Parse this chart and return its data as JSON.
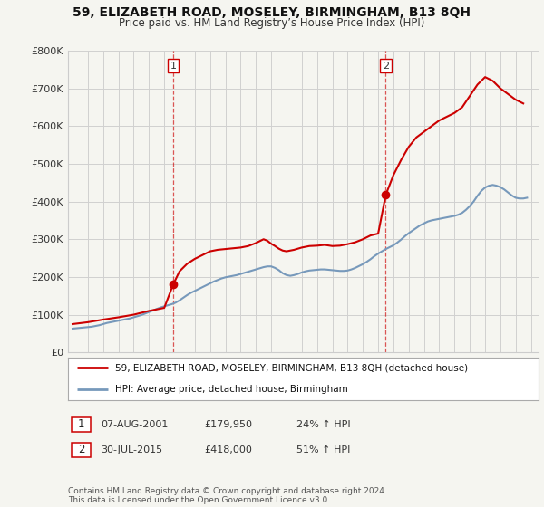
{
  "title": "59, ELIZABETH ROAD, MOSELEY, BIRMINGHAM, B13 8QH",
  "subtitle": "Price paid vs. HM Land Registry’s House Price Index (HPI)",
  "background_color": "#f5f5f0",
  "plot_bg_color": "#f5f5f0",
  "grid_color": "#d0d0d0",
  "legend_line1": "59, ELIZABETH ROAD, MOSELEY, BIRMINGHAM, B13 8QH (detached house)",
  "legend_line2": "HPI: Average price, detached house, Birmingham",
  "annotation1": "07-AUG-2001",
  "annotation1_price": "£179,950",
  "annotation1_pct": "24% ↑ HPI",
  "annotation2": "30-JUL-2015",
  "annotation2_price": "£418,000",
  "annotation2_pct": "51% ↑ HPI",
  "footer": "Contains HM Land Registry data © Crown copyright and database right 2024.\nThis data is licensed under the Open Government Licence v3.0.",
  "ylim": [
    0,
    800000
  ],
  "line_color_property": "#cc0000",
  "line_color_hpi": "#7799bb",
  "sale_marker_color": "#cc0000",
  "vline_color": "#cc0000",
  "sale1_year": 2001,
  "sale1_month": 8,
  "sale1_price": 179950,
  "sale2_year": 2015,
  "sale2_month": 7,
  "sale2_price": 418000,
  "hpi_x": [
    1995.0,
    1995.25,
    1995.5,
    1995.75,
    1996.0,
    1996.25,
    1996.5,
    1996.75,
    1997.0,
    1997.25,
    1997.5,
    1997.75,
    1998.0,
    1998.25,
    1998.5,
    1998.75,
    1999.0,
    1999.25,
    1999.5,
    1999.75,
    2000.0,
    2000.25,
    2000.5,
    2000.75,
    2001.0,
    2001.25,
    2001.5,
    2001.75,
    2002.0,
    2002.25,
    2002.5,
    2002.75,
    2003.0,
    2003.25,
    2003.5,
    2003.75,
    2004.0,
    2004.25,
    2004.5,
    2004.75,
    2005.0,
    2005.25,
    2005.5,
    2005.75,
    2006.0,
    2006.25,
    2006.5,
    2006.75,
    2007.0,
    2007.25,
    2007.5,
    2007.75,
    2008.0,
    2008.25,
    2008.5,
    2008.75,
    2009.0,
    2009.25,
    2009.5,
    2009.75,
    2010.0,
    2010.25,
    2010.5,
    2010.75,
    2011.0,
    2011.25,
    2011.5,
    2011.75,
    2012.0,
    2012.25,
    2012.5,
    2012.75,
    2013.0,
    2013.25,
    2013.5,
    2013.75,
    2014.0,
    2014.25,
    2014.5,
    2014.75,
    2015.0,
    2015.25,
    2015.5,
    2015.75,
    2016.0,
    2016.25,
    2016.5,
    2016.75,
    2017.0,
    2017.25,
    2017.5,
    2017.75,
    2018.0,
    2018.25,
    2018.5,
    2018.75,
    2019.0,
    2019.25,
    2019.5,
    2019.75,
    2020.0,
    2020.25,
    2020.5,
    2020.75,
    2021.0,
    2021.25,
    2021.5,
    2021.75,
    2022.0,
    2022.25,
    2022.5,
    2022.75,
    2023.0,
    2023.25,
    2023.5,
    2023.75,
    2024.0,
    2024.25,
    2024.5,
    2024.75
  ],
  "hpi_y": [
    63000,
    64000,
    65000,
    66000,
    67000,
    68000,
    70000,
    72000,
    75000,
    78000,
    80000,
    82000,
    84000,
    86000,
    88000,
    90000,
    93000,
    96000,
    99000,
    103000,
    107000,
    111000,
    115000,
    119000,
    122000,
    125000,
    128000,
    132000,
    138000,
    145000,
    152000,
    158000,
    163000,
    168000,
    173000,
    178000,
    183000,
    188000,
    192000,
    196000,
    199000,
    201000,
    203000,
    205000,
    208000,
    211000,
    214000,
    217000,
    220000,
    223000,
    226000,
    228000,
    228000,
    224000,
    218000,
    210000,
    205000,
    203000,
    205000,
    208000,
    212000,
    215000,
    217000,
    218000,
    219000,
    220000,
    220000,
    219000,
    218000,
    217000,
    216000,
    216000,
    217000,
    220000,
    224000,
    229000,
    234000,
    240000,
    247000,
    255000,
    262000,
    268000,
    274000,
    279000,
    284000,
    291000,
    299000,
    308000,
    316000,
    323000,
    330000,
    337000,
    342000,
    347000,
    350000,
    352000,
    354000,
    356000,
    358000,
    360000,
    362000,
    365000,
    370000,
    378000,
    388000,
    400000,
    415000,
    428000,
    437000,
    442000,
    444000,
    442000,
    438000,
    432000,
    424000,
    416000,
    410000,
    408000,
    408000,
    410000
  ],
  "prop_x": [
    1995.0,
    1996.0,
    1997.0,
    1998.0,
    1999.0,
    2000.0,
    2001.0,
    2001.583,
    2002.0,
    2002.5,
    2003.0,
    2003.5,
    2004.0,
    2004.5,
    2005.0,
    2005.5,
    2006.0,
    2006.5,
    2007.0,
    2007.25,
    2007.5,
    2007.75,
    2008.0,
    2008.25,
    2008.5,
    2008.75,
    2009.0,
    2009.25,
    2009.5,
    2009.75,
    2010.0,
    2010.5,
    2011.0,
    2011.5,
    2012.0,
    2012.5,
    2013.0,
    2013.5,
    2014.0,
    2014.5,
    2015.0,
    2015.5,
    2016.0,
    2016.5,
    2017.0,
    2017.5,
    2018.0,
    2018.5,
    2019.0,
    2019.5,
    2020.0,
    2020.5,
    2021.0,
    2021.5,
    2022.0,
    2022.5,
    2023.0,
    2023.5,
    2024.0,
    2024.5
  ],
  "prop_y": [
    75000,
    80000,
    87000,
    93000,
    100000,
    110000,
    118000,
    179950,
    215000,
    235000,
    248000,
    258000,
    268000,
    272000,
    274000,
    276000,
    278000,
    282000,
    290000,
    295000,
    300000,
    296000,
    288000,
    282000,
    275000,
    270000,
    268000,
    270000,
    272000,
    275000,
    278000,
    282000,
    283000,
    285000,
    282000,
    283000,
    287000,
    292000,
    300000,
    310000,
    315000,
    418000,
    470000,
    510000,
    545000,
    570000,
    585000,
    600000,
    615000,
    625000,
    635000,
    650000,
    680000,
    710000,
    730000,
    720000,
    700000,
    685000,
    670000,
    660000
  ]
}
